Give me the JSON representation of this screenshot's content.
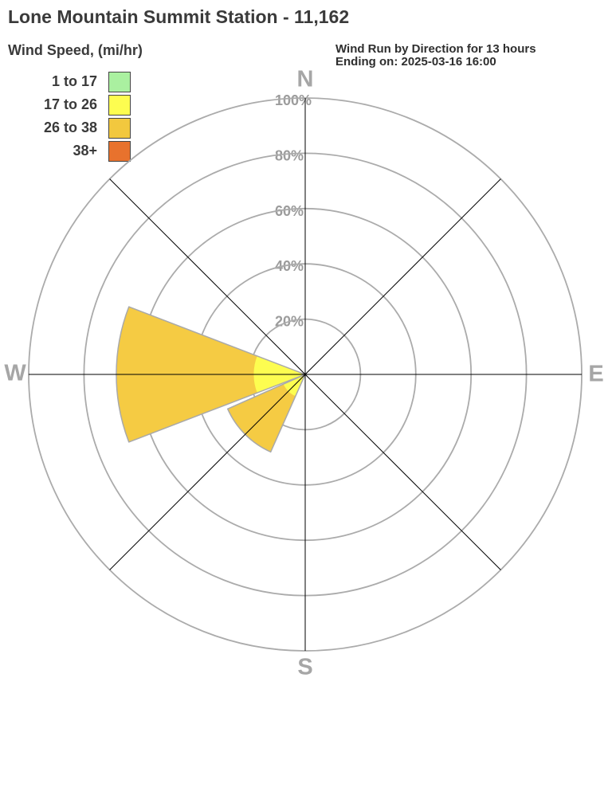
{
  "title": "Lone Mountain Summit Station - 11,162",
  "legend": {
    "title": "Wind Speed, (mi/hr)",
    "items": [
      {
        "label": "1 to 17",
        "color": "#aaf0a0"
      },
      {
        "label": "17 to 26",
        "color": "#fdfd50"
      },
      {
        "label": "26 to 38",
        "color": "#f2c83e"
      },
      {
        "label": "38+",
        "color": "#e8722d"
      }
    ]
  },
  "header": {
    "line1": "Wind Run by Direction for 13 hours",
    "line2": "Ending on: 2025-03-16 16:00"
  },
  "chart_data": {
    "type": "wind_rose",
    "title": "Wind Run by Direction for 13 hours Ending on: 2025-03-16 16:00",
    "units": "percent of total wind run",
    "duration_hours": 13,
    "ending_on": "2025-03-16 16:00",
    "compass_labels": {
      "north": "N",
      "east": "E",
      "south": "S",
      "west": "W"
    },
    "radial_ticks": [
      {
        "label": "20%",
        "pct": 20
      },
      {
        "label": "40%",
        "pct": 40
      },
      {
        "label": "60%",
        "pct": 60
      },
      {
        "label": "80%",
        "pct": 80
      },
      {
        "label": "100%",
        "pct": 100
      }
    ],
    "max_pct": 100,
    "sector_width_deg": 42,
    "speed_bins_mph": [
      "1 to 17",
      "17 to 26",
      "26 to 38",
      "38+"
    ],
    "directions": [
      {
        "direction": "W",
        "center_deg": 270,
        "total_pct": 68.3,
        "segments": [
          {
            "bin": "17 to 26",
            "color": "#fdfd50",
            "from_pct": 0,
            "to_pct": 18.6
          },
          {
            "bin": "26 to 38",
            "color": "#f5cb43",
            "from_pct": 18.6,
            "to_pct": 68.3
          }
        ]
      },
      {
        "direction": "SW",
        "center_deg": 225,
        "total_pct": 30.7,
        "segments": [
          {
            "bin": "17 to 26",
            "color": "#fdfd50",
            "from_pct": 0,
            "to_pct": 8.6
          },
          {
            "bin": "26 to 38",
            "color": "#f5cb43",
            "from_pct": 8.6,
            "to_pct": 30.7
          }
        ]
      }
    ],
    "colors": {
      "grid_circle": "#ababab",
      "axis_line": "#000000",
      "wedge_outline": "#a9a9a9",
      "tick_text": "#9c9c9c",
      "compass_text": "#a6a6a6"
    },
    "grid": "polar, 5 rings, 8 radial spokes"
  }
}
